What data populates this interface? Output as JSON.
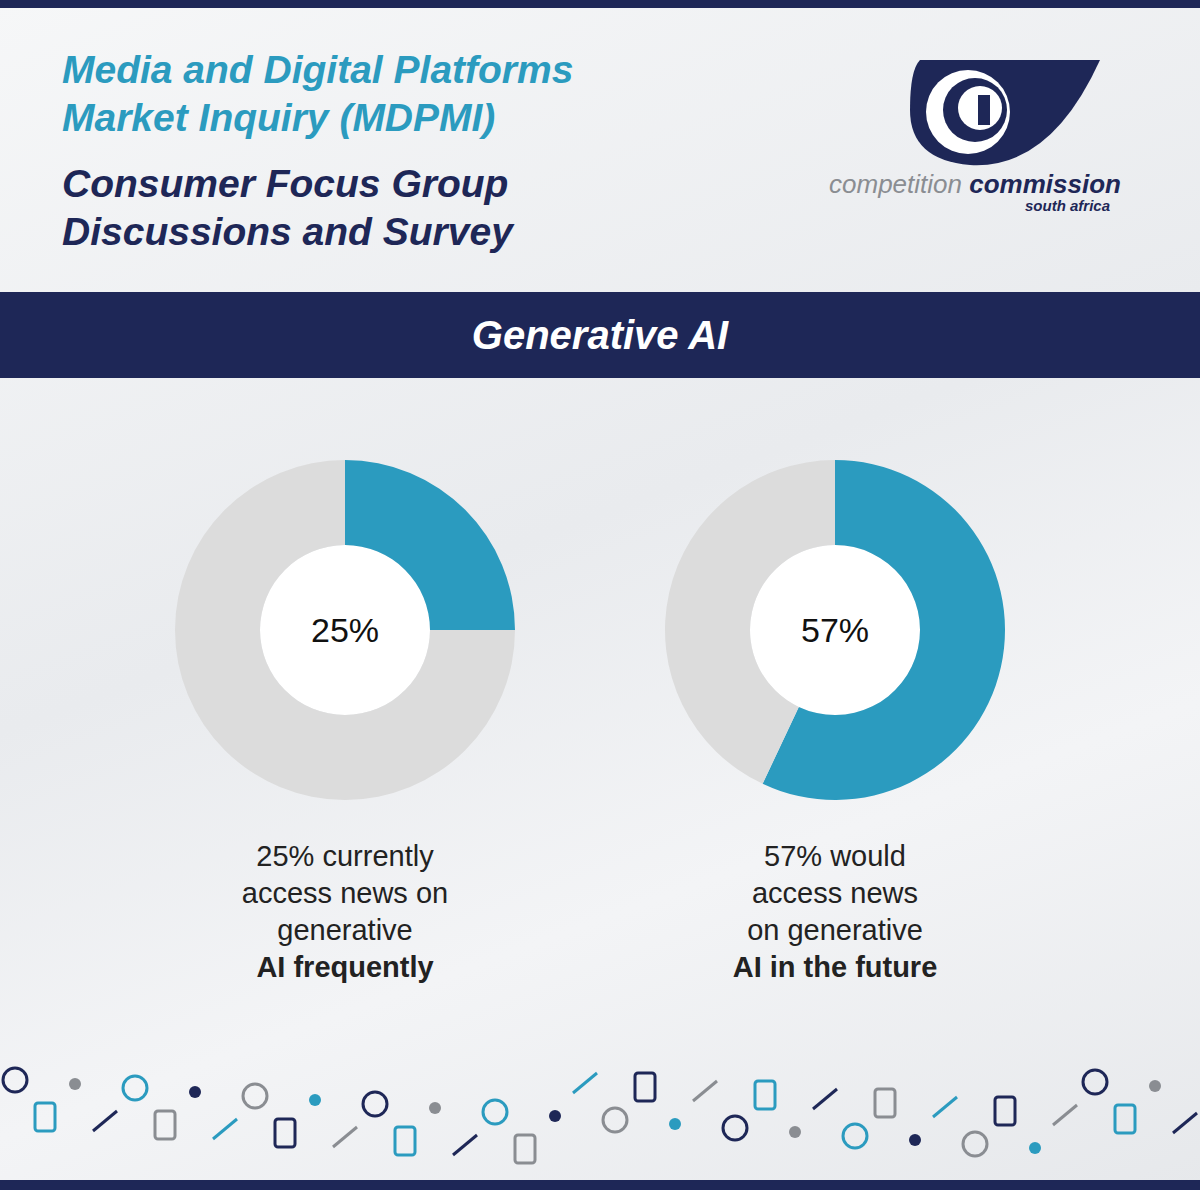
{
  "header": {
    "title_lines": [
      "Media and Digital Platforms",
      "Market Inquiry (MDPMI)"
    ],
    "subtitle_lines": [
      "Consumer Focus Group",
      "Discussions and Survey"
    ]
  },
  "logo": {
    "word1": "competition",
    "word2": "commission",
    "sub": "south africa"
  },
  "banner": "Generative AI",
  "chart_data": [
    {
      "type": "pie",
      "values": [
        25,
        75
      ],
      "colors": [
        "#2b9bbf",
        "#dcdcdc"
      ],
      "center_label": "25%",
      "caption_lines": [
        "25% currently",
        "access news on",
        "generative"
      ],
      "caption_bold": "AI frequently"
    },
    {
      "type": "pie",
      "values": [
        57,
        43
      ],
      "colors": [
        "#2b9bbf",
        "#dcdcdc"
      ],
      "center_label": "57%",
      "caption_lines": [
        "57% would",
        "access news",
        "on generative"
      ],
      "caption_bold": "AI in the future"
    }
  ]
}
